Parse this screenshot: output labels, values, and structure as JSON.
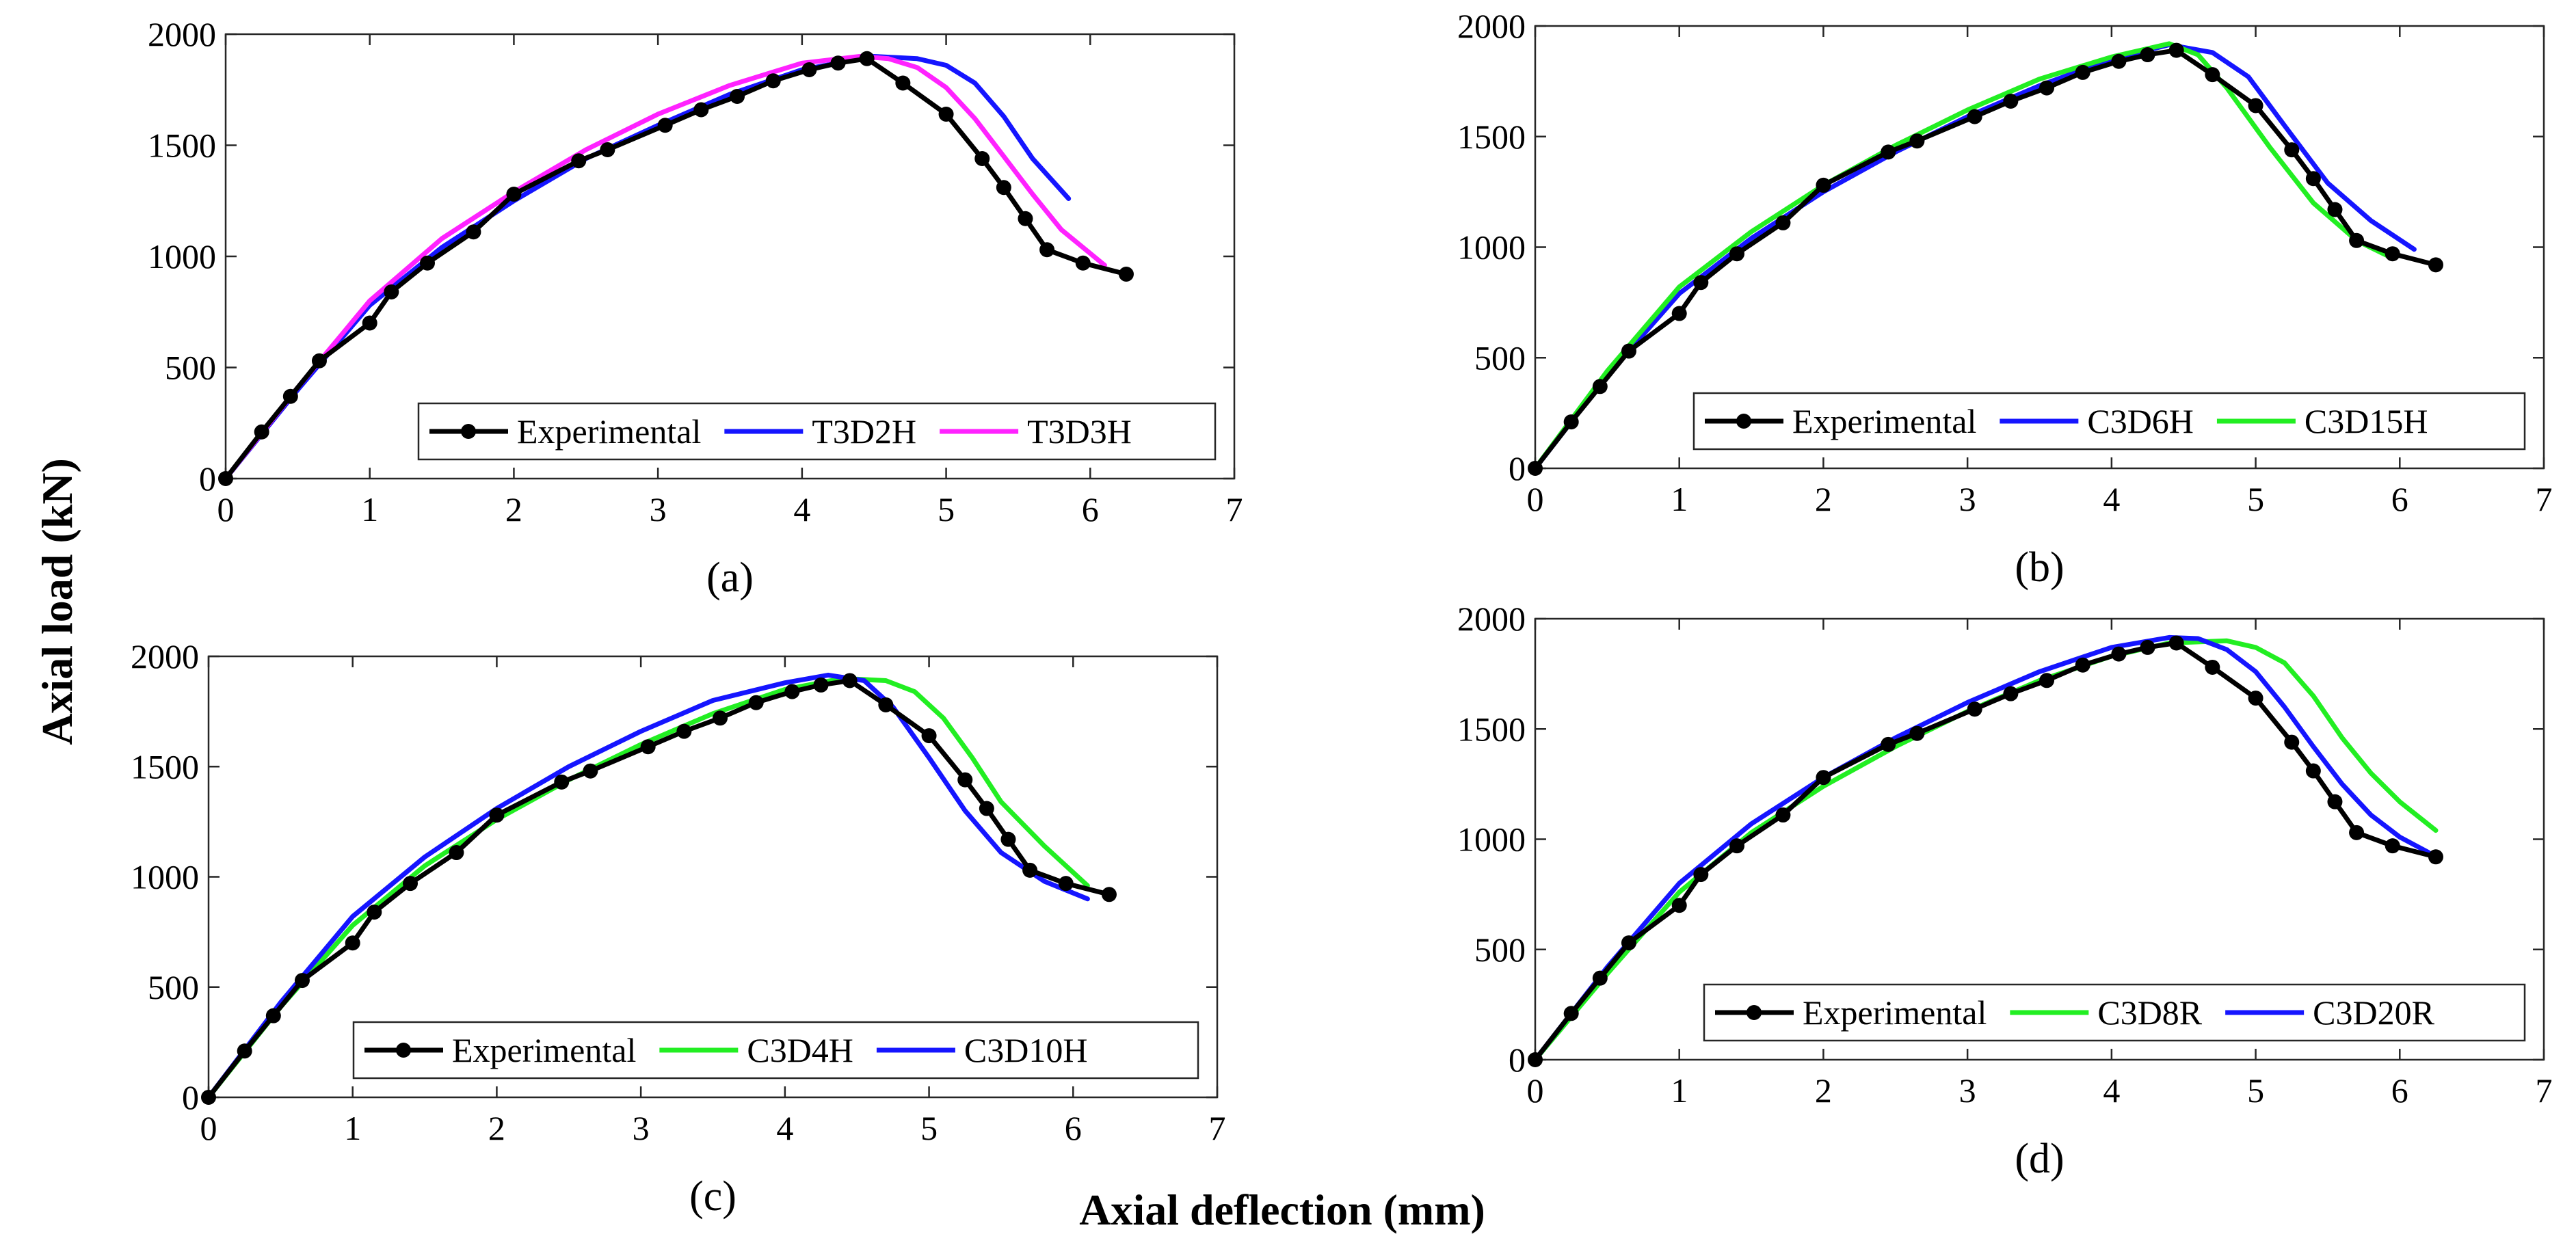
{
  "figure": {
    "shared_ylabel": "Axial load (kN)",
    "shared_xlabel": "Axial deflection (mm)"
  },
  "colors": {
    "Experimental": "#000000",
    "T3D2H": "#1515ff",
    "T3D3H": "#ff22ff",
    "C3D6H": "#1515ff",
    "C3D15H": "#22ee22",
    "C3D4H": "#22ee22",
    "C3D10H": "#1515ff",
    "C3D8R": "#22ee22",
    "C3D20R": "#1515ff"
  },
  "chart_data": [
    {
      "type": "line",
      "panel_label": "(a)",
      "xlabel": "Axial deflection (mm)",
      "ylabel": "Axial load (kN)",
      "xlim": [
        0,
        7
      ],
      "ylim": [
        0,
        2000
      ],
      "xticks": [
        "0",
        "1",
        "2",
        "3",
        "4",
        "5",
        "6",
        "7"
      ],
      "yticks": [
        "0",
        "500",
        "1000",
        "1500",
        "2000"
      ],
      "legend_position": "bottom-right",
      "series": [
        {
          "name": "Experimental",
          "markers": true,
          "x": [
            0,
            0.25,
            0.45,
            0.65,
            1.0,
            1.15,
            1.4,
            1.72,
            2.0,
            2.45,
            2.65,
            3.05,
            3.3,
            3.55,
            3.8,
            4.05,
            4.25,
            4.45,
            4.7,
            5.0,
            5.25,
            5.4,
            5.55,
            5.7,
            5.95,
            6.25
          ],
          "y": [
            0,
            210,
            370,
            530,
            700,
            840,
            970,
            1110,
            1280,
            1430,
            1480,
            1590,
            1660,
            1720,
            1790,
            1840,
            1870,
            1890,
            1780,
            1640,
            1440,
            1310,
            1170,
            1030,
            970,
            920
          ]
        },
        {
          "name": "T3D2H",
          "markers": false,
          "x": [
            0,
            0.5,
            1.0,
            1.5,
            2.0,
            2.5,
            3.0,
            3.5,
            4.0,
            4.5,
            4.8,
            5.0,
            5.2,
            5.4,
            5.6,
            5.85
          ],
          "y": [
            0,
            400,
            780,
            1040,
            1250,
            1440,
            1590,
            1730,
            1840,
            1900,
            1890,
            1860,
            1780,
            1630,
            1440,
            1260
          ]
        },
        {
          "name": "T3D3H",
          "markers": false,
          "x": [
            0,
            0.5,
            1.0,
            1.5,
            2.0,
            2.5,
            3.0,
            3.5,
            4.0,
            4.4,
            4.6,
            4.8,
            5.0,
            5.2,
            5.4,
            5.6,
            5.8,
            6.1
          ],
          "y": [
            0,
            410,
            800,
            1080,
            1290,
            1480,
            1640,
            1770,
            1870,
            1900,
            1890,
            1850,
            1760,
            1620,
            1450,
            1280,
            1120,
            960
          ]
        }
      ]
    },
    {
      "type": "line",
      "panel_label": "(b)",
      "xlabel": "Axial deflection (mm)",
      "ylabel": "Axial load (kN)",
      "xlim": [
        0,
        7
      ],
      "ylim": [
        0,
        2000
      ],
      "xticks": [
        "0",
        "1",
        "2",
        "3",
        "4",
        "5",
        "6",
        "7"
      ],
      "yticks": [
        "0",
        "500",
        "1000",
        "1500",
        "2000"
      ],
      "legend_position": "bottom-right",
      "series": [
        {
          "name": "Experimental",
          "markers": true,
          "x": [
            0,
            0.25,
            0.45,
            0.65,
            1.0,
            1.15,
            1.4,
            1.72,
            2.0,
            2.45,
            2.65,
            3.05,
            3.3,
            3.55,
            3.8,
            4.05,
            4.25,
            4.45,
            4.7,
            5.0,
            5.25,
            5.4,
            5.55,
            5.7,
            5.95,
            6.25
          ],
          "y": [
            0,
            210,
            370,
            530,
            700,
            840,
            970,
            1110,
            1280,
            1430,
            1480,
            1590,
            1660,
            1720,
            1790,
            1840,
            1870,
            1890,
            1780,
            1640,
            1440,
            1310,
            1170,
            1030,
            970,
            920
          ]
        },
        {
          "name": "C3D6H",
          "markers": false,
          "x": [
            0,
            0.5,
            1.0,
            1.5,
            2.0,
            2.5,
            3.0,
            3.5,
            4.0,
            4.4,
            4.7,
            4.95,
            5.2,
            5.5,
            5.8,
            6.1
          ],
          "y": [
            0,
            420,
            790,
            1040,
            1250,
            1430,
            1590,
            1730,
            1850,
            1915,
            1880,
            1770,
            1550,
            1290,
            1120,
            990
          ]
        },
        {
          "name": "C3D15H",
          "markers": false,
          "x": [
            0,
            0.5,
            1.0,
            1.5,
            2.0,
            2.5,
            3.0,
            3.5,
            4.0,
            4.4,
            4.6,
            4.8,
            5.1,
            5.4,
            5.7,
            5.95
          ],
          "y": [
            0,
            440,
            820,
            1070,
            1280,
            1460,
            1620,
            1760,
            1860,
            1920,
            1870,
            1720,
            1450,
            1200,
            1030,
            950
          ]
        }
      ]
    },
    {
      "type": "line",
      "panel_label": "(c)",
      "xlabel": "Axial deflection (mm)",
      "ylabel": "Axial load (kN)",
      "xlim": [
        0,
        7
      ],
      "ylim": [
        0,
        2000
      ],
      "xticks": [
        "0",
        "1",
        "2",
        "3",
        "4",
        "5",
        "6",
        "7"
      ],
      "yticks": [
        "0",
        "500",
        "1000",
        "1500",
        "2000"
      ],
      "legend_position": "bottom-right",
      "series": [
        {
          "name": "Experimental",
          "markers": true,
          "x": [
            0,
            0.25,
            0.45,
            0.65,
            1.0,
            1.15,
            1.4,
            1.72,
            2.0,
            2.45,
            2.65,
            3.05,
            3.3,
            3.55,
            3.8,
            4.05,
            4.25,
            4.45,
            4.7,
            5.0,
            5.25,
            5.4,
            5.55,
            5.7,
            5.95,
            6.25
          ],
          "y": [
            0,
            210,
            370,
            530,
            700,
            840,
            970,
            1110,
            1280,
            1430,
            1480,
            1590,
            1660,
            1720,
            1790,
            1840,
            1870,
            1890,
            1780,
            1640,
            1440,
            1310,
            1170,
            1030,
            970,
            920
          ]
        },
        {
          "name": "C3D4H",
          "markers": false,
          "x": [
            0,
            0.5,
            1.0,
            1.5,
            2.0,
            2.5,
            3.0,
            3.5,
            4.0,
            4.4,
            4.7,
            4.9,
            5.1,
            5.3,
            5.5,
            5.8,
            6.1
          ],
          "y": [
            0,
            410,
            780,
            1050,
            1260,
            1440,
            1600,
            1740,
            1850,
            1900,
            1890,
            1840,
            1720,
            1540,
            1340,
            1140,
            960
          ]
        },
        {
          "name": "C3D10H",
          "markers": false,
          "x": [
            0,
            0.5,
            1.0,
            1.5,
            2.0,
            2.5,
            3.0,
            3.5,
            4.0,
            4.3,
            4.55,
            4.75,
            5.0,
            5.25,
            5.5,
            5.8,
            6.1
          ],
          "y": [
            0,
            430,
            820,
            1090,
            1310,
            1500,
            1660,
            1800,
            1880,
            1915,
            1890,
            1770,
            1540,
            1300,
            1110,
            980,
            900
          ]
        }
      ]
    },
    {
      "type": "line",
      "panel_label": "(d)",
      "xlabel": "Axial deflection (mm)",
      "ylabel": "Axial load (kN)",
      "xlim": [
        0,
        7
      ],
      "ylim": [
        0,
        2000
      ],
      "xticks": [
        "0",
        "1",
        "2",
        "3",
        "4",
        "5",
        "6",
        "7"
      ],
      "yticks": [
        "0",
        "500",
        "1000",
        "1500",
        "2000"
      ],
      "legend_position": "bottom-right",
      "series": [
        {
          "name": "Experimental",
          "markers": true,
          "x": [
            0,
            0.25,
            0.45,
            0.65,
            1.0,
            1.15,
            1.4,
            1.72,
            2.0,
            2.45,
            2.65,
            3.05,
            3.3,
            3.55,
            3.8,
            4.05,
            4.25,
            4.45,
            4.7,
            5.0,
            5.25,
            5.4,
            5.55,
            5.7,
            5.95,
            6.25
          ],
          "y": [
            0,
            210,
            370,
            530,
            700,
            840,
            970,
            1110,
            1280,
            1430,
            1480,
            1590,
            1660,
            1720,
            1790,
            1840,
            1870,
            1890,
            1780,
            1640,
            1440,
            1310,
            1170,
            1030,
            970,
            920
          ]
        },
        {
          "name": "C3D8R",
          "markers": false,
          "x": [
            0,
            0.5,
            1.0,
            1.5,
            2.0,
            2.5,
            3.0,
            3.5,
            4.0,
            4.4,
            4.8,
            5.0,
            5.2,
            5.4,
            5.6,
            5.8,
            6.0,
            6.25
          ],
          "y": [
            0,
            390,
            760,
            1030,
            1240,
            1420,
            1580,
            1720,
            1830,
            1890,
            1900,
            1870,
            1800,
            1650,
            1460,
            1300,
            1170,
            1040
          ]
        },
        {
          "name": "C3D20R",
          "markers": false,
          "x": [
            0,
            0.5,
            1.0,
            1.5,
            2.0,
            2.5,
            3.0,
            3.5,
            4.0,
            4.4,
            4.6,
            4.8,
            5.0,
            5.2,
            5.4,
            5.6,
            5.8,
            6.0,
            6.2
          ],
          "y": [
            0,
            420,
            800,
            1070,
            1280,
            1460,
            1620,
            1760,
            1870,
            1915,
            1910,
            1860,
            1760,
            1600,
            1420,
            1250,
            1110,
            1010,
            940
          ]
        }
      ]
    }
  ]
}
